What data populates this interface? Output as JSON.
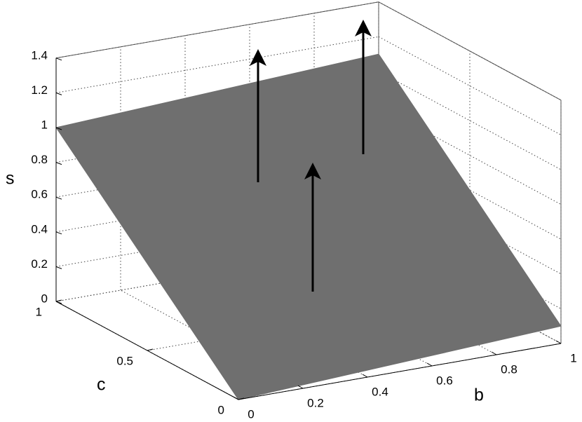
{
  "chart_data": {
    "type": "surface",
    "xlabel": "b",
    "ylabel": "c",
    "zlabel": "s",
    "x": [
      0,
      1
    ],
    "y": [
      0,
      1
    ],
    "z": [
      [
        0,
        0.1
      ],
      [
        1,
        1.1
      ]
    ],
    "xlim": [
      0,
      1
    ],
    "ylim": [
      0,
      1
    ],
    "zlim": [
      0,
      1.4
    ],
    "xticks": [
      0,
      0.2,
      0.4,
      0.6,
      0.8,
      1
    ],
    "yticks": [
      0,
      0.5,
      1
    ],
    "zticks": [
      0,
      0.2,
      0.4,
      0.6,
      0.8,
      1,
      1.2,
      1.4
    ],
    "color": "#6f6f6f",
    "grid": true
  }
}
